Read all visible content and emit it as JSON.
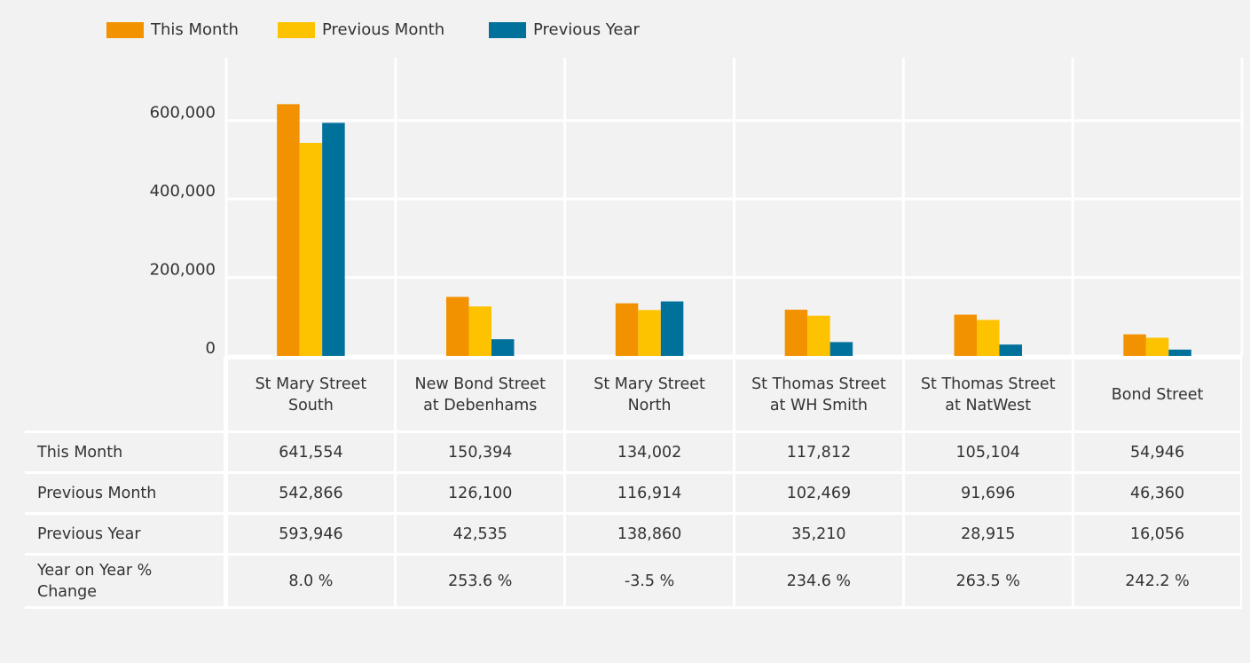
{
  "chart_data": {
    "type": "bar",
    "categories": [
      "St Mary Street\nSouth",
      "New Bond Street\nat Debenhams",
      "St Mary Street\nNorth",
      "St Thomas Street\nat WH Smith",
      "St Thomas Street\nat NatWest",
      "Bond Street"
    ],
    "series": [
      {
        "name": "This Month",
        "color": "#f39200",
        "values": [
          641554,
          150394,
          134002,
          117812,
          105104,
          54946
        ],
        "value_labels": [
          "641,554",
          "150,394",
          "134,002",
          "117,812",
          "105,104",
          "54,946"
        ]
      },
      {
        "name": "Previous Month",
        "color": "#fdc300",
        "values": [
          542866,
          126100,
          116914,
          102469,
          91696,
          46360
        ],
        "value_labels": [
          "542,866",
          "126,100",
          "116,914",
          "102,469",
          "91,696",
          "46,360"
        ]
      },
      {
        "name": "Previous Year",
        "color": "#00719b",
        "values": [
          593946,
          42535,
          138860,
          35210,
          28915,
          16056
        ],
        "value_labels": [
          "593,946",
          "42,535",
          "138,860",
          "35,210",
          "28,915",
          "16,056"
        ]
      }
    ],
    "yoy": {
      "name": "Year on Year %\nChange",
      "values": [
        8.0,
        253.6,
        -3.5,
        234.6,
        263.5,
        242.2
      ],
      "value_labels": [
        "8.0 %",
        "253.6 %",
        "-3.5 %",
        "234.6 %",
        "263.5 %",
        "242.2 %"
      ]
    },
    "ylim": [
      0,
      760000
    ],
    "yticks": [
      0,
      {
        "value": 200000,
        "label": "200,000"
      },
      {
        "value": 400000,
        "label": "400,000"
      },
      {
        "value": 600000,
        "label": "600,000"
      }
    ],
    "grid": true,
    "legend": "top-left"
  }
}
